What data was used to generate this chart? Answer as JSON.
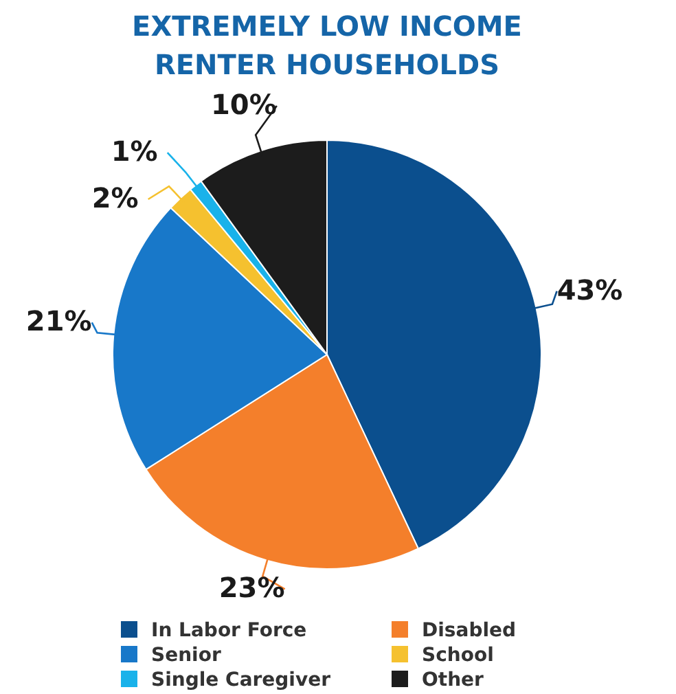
{
  "chart_data": {
    "type": "pie",
    "title": "EXTREMELY LOW INCOME\nRENTER HOUSEHOLDS",
    "categories": [
      "In Labor Force",
      "Disabled",
      "Senior",
      "School",
      "Single Caregiver",
      "Other"
    ],
    "values": [
      43,
      23,
      21,
      2,
      1,
      10
    ],
    "colors": [
      "#0b4f8e",
      "#f47f2b",
      "#1878c9",
      "#f5c12f",
      "#19b2ea",
      "#1c1c1c"
    ],
    "value_labels": [
      "43%",
      "23%",
      "21%",
      "2%",
      "1%",
      "10%"
    ],
    "legend": "bottom"
  }
}
